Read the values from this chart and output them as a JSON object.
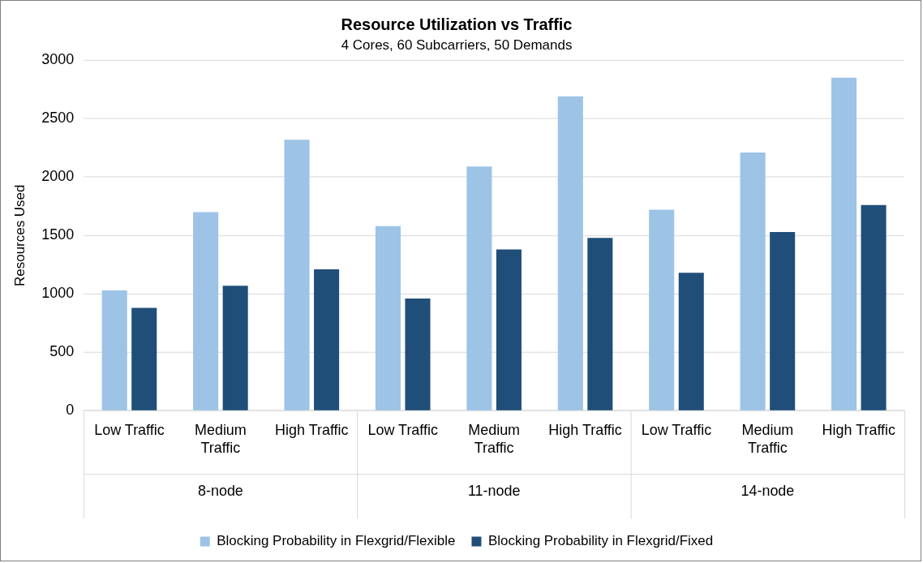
{
  "chart_data": {
    "type": "bar",
    "title": "Resource Utilization vs Traffic",
    "subtitle": "4 Cores, 60 Subcarriers, 50 Demands",
    "ylabel": "Resources Used",
    "categories": [
      "Low Traffic",
      "Medium Traffic",
      "High Traffic",
      "Low Traffic",
      "Medium Traffic",
      "High Traffic",
      "Low Traffic",
      "Medium Traffic",
      "High Traffic"
    ],
    "annotations": [
      "8-node",
      "11-node",
      "14-node"
    ],
    "series": [
      {
        "name": "Blocking Probability in Flexgrid/Flexible",
        "color": "#9dc3e6",
        "values": [
          1030,
          1700,
          2320,
          1580,
          2090,
          2690,
          1720,
          2210,
          2850
        ]
      },
      {
        "name": "Blocking Probability in Flexgrid/Fixed",
        "color": "#1f4e79",
        "values": [
          880,
          1070,
          1210,
          960,
          1380,
          1480,
          1180,
          1530,
          1760
        ]
      }
    ],
    "ylim": [
      0,
      3000
    ],
    "yticks": [
      0,
      500,
      1000,
      1500,
      2000,
      2500,
      3000
    ],
    "grid": "y",
    "legend": "bottom"
  }
}
